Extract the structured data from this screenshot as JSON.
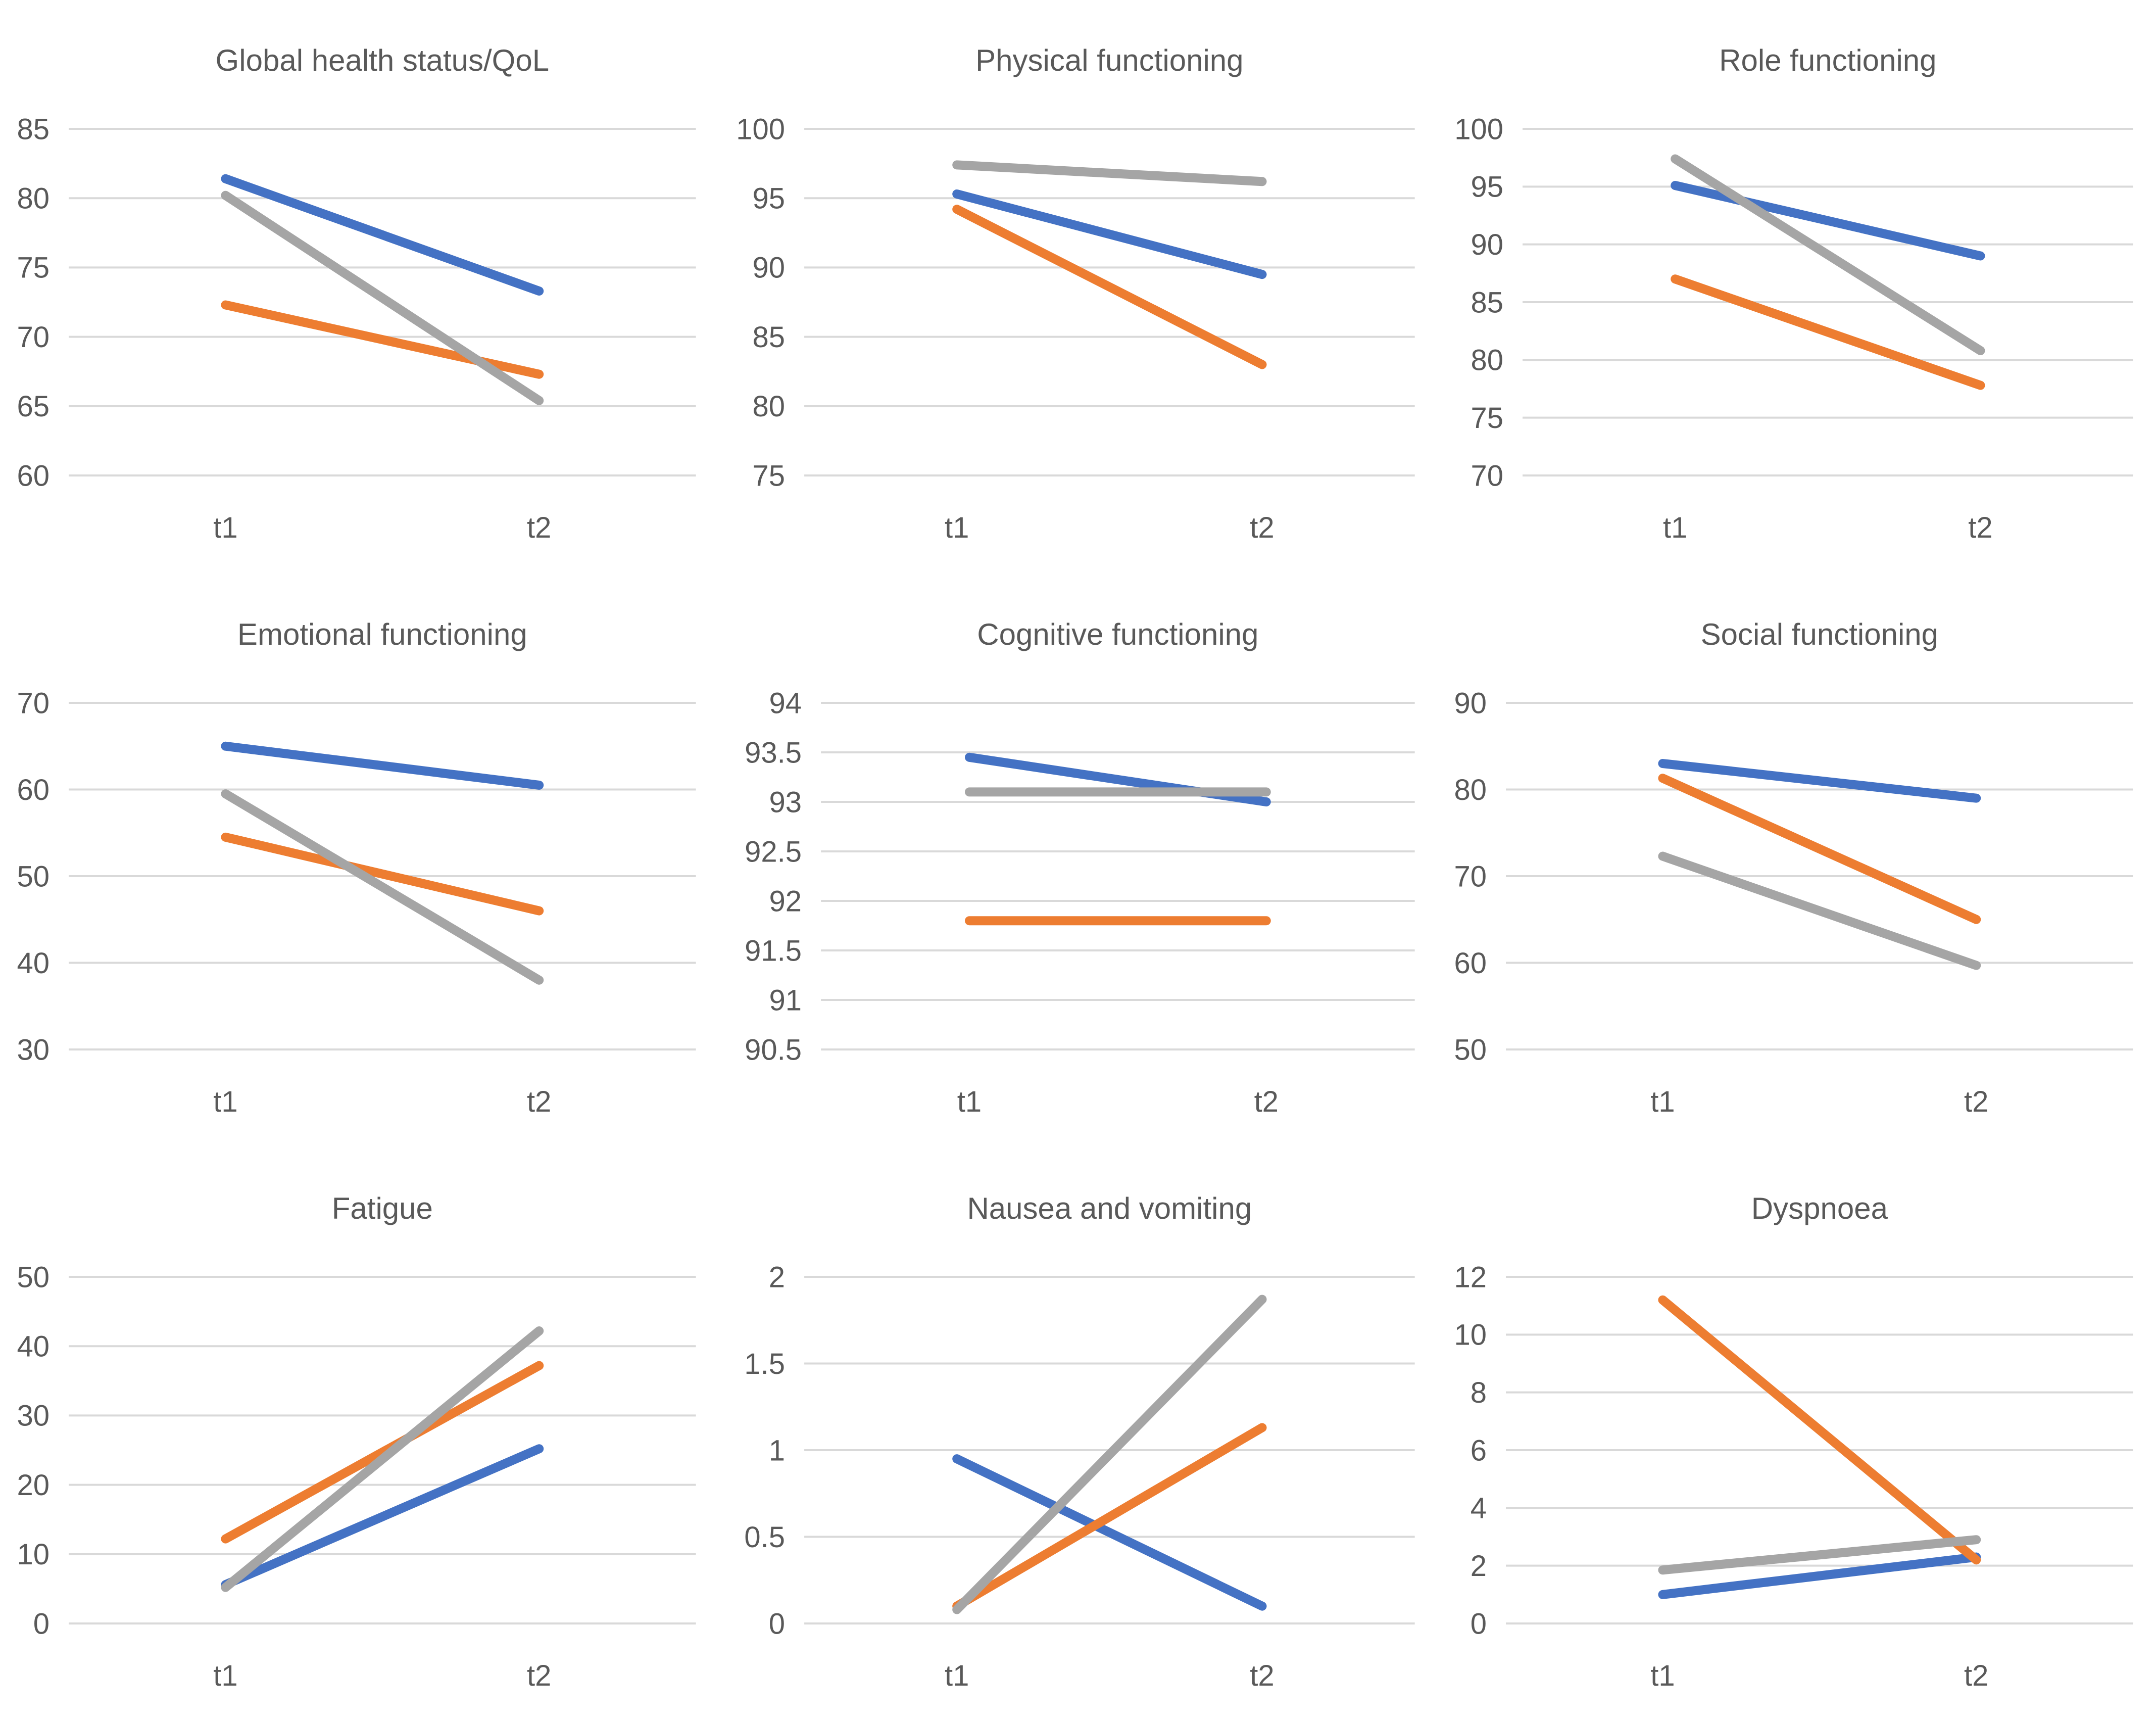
{
  "page": {
    "background_color": "#ffffff",
    "text_color": "#595959",
    "gridline_color": "#d9d9d9"
  },
  "x_categories": [
    "t1",
    "t2"
  ],
  "series_colors": {
    "series1": "#4472c4",
    "series2": "#ed7d31",
    "series3": "#a5a5a5"
  },
  "chart_data": [
    {
      "type": "line",
      "title": "Global health status/QoL",
      "x": [
        "t1",
        "t2"
      ],
      "ylim": [
        60,
        85
      ],
      "ytick_step": 5,
      "grid": true,
      "legend": "none",
      "series": [
        {
          "name": "series1-blue",
          "color": "#4472c4",
          "values": [
            81.4,
            73.3
          ]
        },
        {
          "name": "series2-orange",
          "color": "#ed7d31",
          "values": [
            72.3,
            67.3
          ]
        },
        {
          "name": "series3-gray",
          "color": "#a5a5a5",
          "values": [
            80.2,
            65.4
          ]
        }
      ]
    },
    {
      "type": "line",
      "title": "Physical functioning",
      "x": [
        "t1",
        "t2"
      ],
      "ylim": [
        75,
        100
      ],
      "ytick_step": 5,
      "grid": true,
      "legend": "none",
      "series": [
        {
          "name": "series1-blue",
          "color": "#4472c4",
          "values": [
            95.3,
            89.5
          ]
        },
        {
          "name": "series2-orange",
          "color": "#ed7d31",
          "values": [
            94.2,
            83.0
          ]
        },
        {
          "name": "series3-gray",
          "color": "#a5a5a5",
          "values": [
            97.4,
            96.2
          ]
        }
      ]
    },
    {
      "type": "line",
      "title": "Role functioning",
      "x": [
        "t1",
        "t2"
      ],
      "ylim": [
        70,
        100
      ],
      "ytick_step": 5,
      "grid": true,
      "legend": "none",
      "series": [
        {
          "name": "series1-blue",
          "color": "#4472c4",
          "values": [
            95.1,
            89.0
          ]
        },
        {
          "name": "series2-orange",
          "color": "#ed7d31",
          "values": [
            87.0,
            77.8
          ]
        },
        {
          "name": "series3-gray",
          "color": "#a5a5a5",
          "values": [
            97.4,
            80.8
          ]
        }
      ]
    },
    {
      "type": "line",
      "title": "Emotional functioning",
      "x": [
        "t1",
        "t2"
      ],
      "ylim": [
        30,
        70
      ],
      "ytick_step": 10,
      "grid": true,
      "legend": "none",
      "series": [
        {
          "name": "series1-blue",
          "color": "#4472c4",
          "values": [
            65.0,
            60.5
          ]
        },
        {
          "name": "series2-orange",
          "color": "#ed7d31",
          "values": [
            54.5,
            46.0
          ]
        },
        {
          "name": "series3-gray",
          "color": "#a5a5a5",
          "values": [
            59.5,
            38.0
          ]
        }
      ]
    },
    {
      "type": "line",
      "title": "Cognitive functioning",
      "x": [
        "t1",
        "t2"
      ],
      "ylim": [
        90.5,
        94
      ],
      "ytick_step": 0.5,
      "grid": true,
      "legend": "none",
      "series": [
        {
          "name": "series1-blue",
          "color": "#4472c4",
          "values": [
            93.45,
            93.0
          ]
        },
        {
          "name": "series2-orange",
          "color": "#ed7d31",
          "values": [
            91.8,
            91.8
          ]
        },
        {
          "name": "series3-gray",
          "color": "#a5a5a5",
          "values": [
            93.1,
            93.1
          ]
        }
      ]
    },
    {
      "type": "line",
      "title": "Social functioning",
      "x": [
        "t1",
        "t2"
      ],
      "ylim": [
        50,
        90
      ],
      "ytick_step": 10,
      "grid": true,
      "legend": "none",
      "series": [
        {
          "name": "series1-blue",
          "color": "#4472c4",
          "values": [
            83.0,
            79.0
          ]
        },
        {
          "name": "series2-orange",
          "color": "#ed7d31",
          "values": [
            81.3,
            65.0
          ]
        },
        {
          "name": "series3-gray",
          "color": "#a5a5a5",
          "values": [
            72.3,
            59.7
          ]
        }
      ]
    },
    {
      "type": "line",
      "title": "Fatigue",
      "x": [
        "t1",
        "t2"
      ],
      "ylim": [
        0,
        50
      ],
      "ytick_step": 10,
      "grid": true,
      "legend": "none",
      "series": [
        {
          "name": "series1-blue",
          "color": "#4472c4",
          "values": [
            5.6,
            25.2
          ]
        },
        {
          "name": "series2-orange",
          "color": "#ed7d31",
          "values": [
            12.2,
            37.2
          ]
        },
        {
          "name": "series3-gray",
          "color": "#a5a5a5",
          "values": [
            5.2,
            42.2
          ]
        }
      ]
    },
    {
      "type": "line",
      "title": "Nausea and vomiting",
      "x": [
        "t1",
        "t2"
      ],
      "ylim": [
        0,
        2
      ],
      "ytick_step": 0.5,
      "grid": true,
      "legend": "none",
      "series": [
        {
          "name": "series1-blue",
          "color": "#4472c4",
          "values": [
            0.95,
            0.1
          ]
        },
        {
          "name": "series2-orange",
          "color": "#ed7d31",
          "values": [
            0.1,
            1.13
          ]
        },
        {
          "name": "series3-gray",
          "color": "#a5a5a5",
          "values": [
            0.08,
            1.87
          ]
        }
      ]
    },
    {
      "type": "line",
      "title": "Dyspnoea",
      "x": [
        "t1",
        "t2"
      ],
      "ylim": [
        0,
        12
      ],
      "ytick_step": 2,
      "grid": true,
      "legend": "none",
      "series": [
        {
          "name": "series1-blue",
          "color": "#4472c4",
          "values": [
            1.0,
            2.3
          ]
        },
        {
          "name": "series2-orange",
          "color": "#ed7d31",
          "values": [
            11.2,
            2.2
          ]
        },
        {
          "name": "series3-gray",
          "color": "#a5a5a5",
          "values": [
            1.85,
            2.9
          ]
        }
      ]
    }
  ]
}
